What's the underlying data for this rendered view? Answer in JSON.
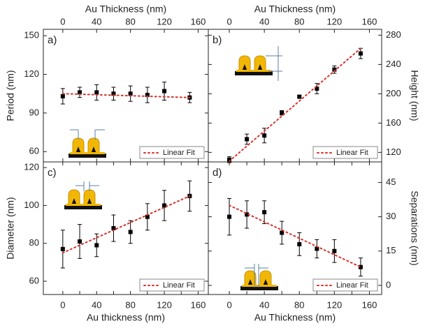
{
  "chart_data": [
    {
      "type": "scatter",
      "label": "a)",
      "xlabel": "Au Thickness (nm)",
      "ylabel": "Period (nm)",
      "xaxis_position": "top",
      "yaxis_position": "left",
      "legend": "lower right",
      "xlim": [
        -23,
        172
      ],
      "xticks": [
        0,
        40,
        80,
        120,
        160
      ],
      "ylim": [
        52,
        155
      ],
      "yticks": [
        60,
        90,
        120,
        150
      ],
      "series": [
        {
          "color": "#000000",
          "x": [
            0,
            20,
            40,
            60,
            80,
            100,
            120,
            150
          ],
          "values": [
            103,
            106,
            106,
            105,
            105,
            104,
            107,
            102
          ],
          "errors": [
            6,
            4,
            6,
            5,
            6,
            6,
            7,
            4
          ]
        },
        {
          "name": "Linear Fit",
          "color": "#d9302a",
          "x": [
            0,
            150
          ],
          "values": [
            105,
            102
          ]
        }
      ]
    },
    {
      "type": "scatter",
      "label": "b)",
      "xlabel": "Au Thickness (nm)",
      "ylabel": "Height (nm)",
      "xaxis_position": "top",
      "yaxis_position": "right",
      "legend": "lower right",
      "xlim": [
        -24,
        174
      ],
      "xticks": [
        0,
        40,
        80,
        120,
        160
      ],
      "ylim": [
        107,
        288
      ],
      "yticks": [
        120,
        160,
        200,
        240,
        280
      ],
      "series": [
        {
          "color": "#000000",
          "x": [
            0,
            20,
            40,
            60,
            80,
            100,
            120,
            150
          ],
          "values": [
            110,
            138,
            143,
            174,
            196,
            207,
            233,
            255
          ],
          "errors": [
            4,
            7,
            10,
            3,
            2,
            7,
            5,
            7
          ]
        },
        {
          "name": "Linear Fit",
          "color": "#d9302a",
          "x": [
            0,
            150
          ],
          "values": [
            108,
            262
          ]
        }
      ]
    },
    {
      "type": "scatter",
      "label": "c)",
      "xlabel": "Au thickness (nm)",
      "ylabel": "Diameter (nm)",
      "xaxis_position": "bottom",
      "yaxis_position": "left",
      "legend": "lower right",
      "xlim": [
        -23,
        172
      ],
      "xticks": [
        0,
        20,
        40,
        60,
        80,
        100,
        120,
        140,
        160
      ],
      "ylim": [
        53,
        123
      ],
      "yticks": [
        60,
        80,
        100,
        120
      ],
      "series": [
        {
          "color": "#000000",
          "x": [
            0,
            20,
            40,
            60,
            80,
            100,
            120,
            150
          ],
          "values": [
            77,
            81,
            79,
            88,
            86,
            94,
            100,
            105
          ],
          "errors": [
            10,
            9,
            6,
            7,
            6,
            7,
            8,
            8
          ]
        },
        {
          "name": "Linear Fit",
          "color": "#d9302a",
          "x": [
            0,
            150
          ],
          "values": [
            75,
            105
          ]
        }
      ]
    },
    {
      "type": "scatter",
      "label": "d)",
      "xlabel": "Au Thickness (nm)",
      "ylabel": "Separations (nm)",
      "xaxis_position": "bottom",
      "yaxis_position": "right",
      "legend": "lower right",
      "xlim": [
        -24,
        174
      ],
      "xticks": [
        0,
        20,
        40,
        60,
        80,
        100,
        120,
        140,
        160
      ],
      "ylim": [
        -4,
        54
      ],
      "yticks": [
        0,
        15,
        30,
        45
      ],
      "series": [
        {
          "color": "#000000",
          "x": [
            0,
            20,
            40,
            60,
            80,
            100,
            120,
            150
          ],
          "values": [
            30,
            31,
            32,
            23,
            18,
            16,
            15,
            8
          ],
          "errors": [
            8,
            6,
            5,
            5,
            5,
            4,
            5,
            4
          ]
        },
        {
          "name": "Linear Fit",
          "color": "#d9302a",
          "x": [
            0,
            150
          ],
          "values": [
            35,
            8
          ]
        }
      ]
    }
  ]
}
